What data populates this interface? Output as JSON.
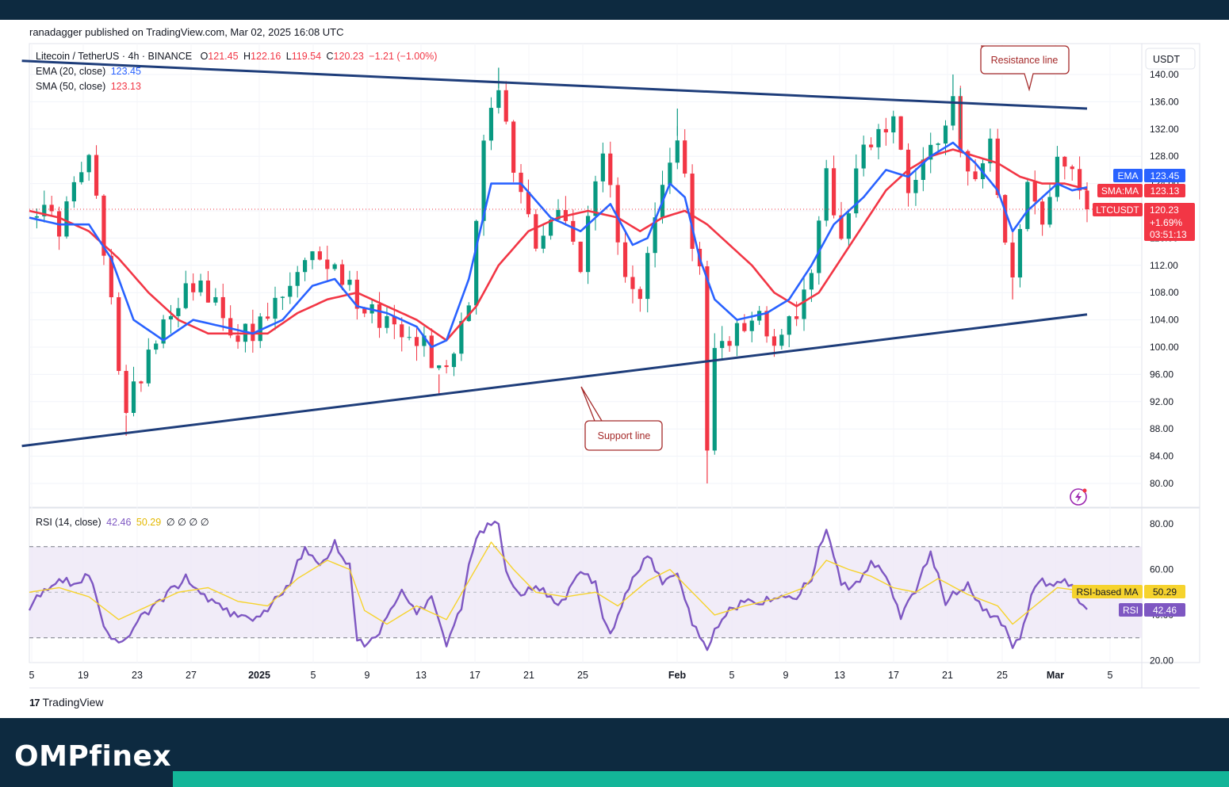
{
  "publisher": "ranadagger published on TradingView.com, Mar 02, 2025 16:08 UTC",
  "brand": {
    "tradingview": "TradingView",
    "omp": "OMPfinex"
  },
  "legend": {
    "symbol": "Litecoin / TetherUS · 4h · BINANCE",
    "o_label": "O",
    "o": "121.45",
    "h_label": "H",
    "h": "122.16",
    "l_label": "L",
    "l": "119.54",
    "c_label": "C",
    "c": "120.23",
    "change": "−1.21 (−1.00%)",
    "ema_label": "EMA (20, close)",
    "ema_value": "123.45",
    "sma_label": "SMA (50, close)",
    "sma_value": "123.13",
    "rsi_label": "RSI (14, close)",
    "rsi_value": "42.46",
    "rsi_ma_value": "50.29",
    "rsi_extra": "∅ ∅ ∅ ∅"
  },
  "currency": "USDT",
  "annotations": {
    "resistance": "Resistance line",
    "support": "Support line"
  },
  "price_tags": {
    "ema_label": "EMA",
    "ema_value": "123.45",
    "sma_label": "SMA:MA",
    "sma_value": "123.13",
    "symbol_label": "LTCUSDT",
    "last_price": "120.23",
    "last_change": "+1.69%",
    "countdown": "03:51:13",
    "rsi_ma_label": "RSI-based MA",
    "rsi_ma_value": "50.29",
    "rsi_label": "RSI",
    "rsi_value": "42.46"
  },
  "colors": {
    "ema": "#2962ff",
    "sma": "#f23645",
    "up": "#089981",
    "down": "#f23645",
    "trendline": "#1e3d7a",
    "rsi": "#7e57c2",
    "rsi_ma": "#f6d32d",
    "annotation": "#a52a2a"
  },
  "chart_data": [
    {
      "type": "candlestick",
      "title": "Litecoin / TetherUS · 4h · BINANCE",
      "y_ticks": [
        "140.00",
        "136.00",
        "132.00",
        "128.00",
        "124.00",
        "120.00",
        "116.00",
        "112.00",
        "108.00",
        "104.00",
        "100.00",
        "96.00",
        "92.00",
        "88.00",
        "84.00",
        "80.00"
      ],
      "ylim": [
        79,
        143
      ],
      "x_ticks": [
        "5",
        "19",
        "23",
        "27",
        "2025",
        "5",
        "9",
        "13",
        "17",
        "21",
        "25",
        "Feb",
        "5",
        "9",
        "13",
        "17",
        "21",
        "25",
        "Mar",
        "5"
      ],
      "price_path": [
        [
          0,
          121
        ],
        [
          4,
          118
        ],
        [
          8,
          128
        ],
        [
          11,
          106
        ],
        [
          13,
          90
        ],
        [
          16,
          100
        ],
        [
          19,
          106
        ],
        [
          22,
          110
        ],
        [
          26,
          104
        ],
        [
          30,
          101
        ],
        [
          33,
          106
        ],
        [
          36,
          110
        ],
        [
          39,
          114
        ],
        [
          42,
          110
        ],
        [
          45,
          106
        ],
        [
          48,
          104
        ],
        [
          51,
          103
        ],
        [
          53,
          101
        ],
        [
          55,
          96
        ],
        [
          57,
          100
        ],
        [
          59,
          108
        ],
        [
          61,
          130
        ],
        [
          63,
          138
        ],
        [
          65,
          126
        ],
        [
          68,
          116
        ],
        [
          71,
          120
        ],
        [
          74,
          113
        ],
        [
          77,
          127
        ],
        [
          80,
          112
        ],
        [
          82,
          108
        ],
        [
          85,
          123
        ],
        [
          87,
          131
        ],
        [
          89,
          116
        ],
        [
          90,
          110
        ],
        [
          91,
          86
        ],
        [
          92,
          98
        ],
        [
          95,
          104
        ],
        [
          98,
          105
        ],
        [
          101,
          100
        ],
        [
          103,
          106
        ],
        [
          105,
          110
        ],
        [
          107,
          126
        ],
        [
          109,
          116
        ],
        [
          112,
          130
        ],
        [
          116,
          133
        ],
        [
          118,
          124
        ],
        [
          121,
          129
        ],
        [
          124,
          137
        ],
        [
          126,
          124
        ],
        [
          129,
          131
        ],
        [
          132,
          110
        ],
        [
          134,
          124
        ],
        [
          136,
          118
        ],
        [
          138,
          126
        ],
        [
          140,
          128
        ],
        [
          142,
          120
        ]
      ],
      "low_wicks": [
        [
          13,
          87
        ],
        [
          91,
          80
        ],
        [
          55,
          93
        ],
        [
          132,
          107
        ]
      ],
      "high_wicks": [
        [
          63,
          141
        ],
        [
          87,
          135
        ],
        [
          124,
          140
        ],
        [
          125,
          138
        ]
      ],
      "ema20": [
        [
          0,
          119
        ],
        [
          4,
          118
        ],
        [
          8,
          118
        ],
        [
          11,
          113
        ],
        [
          14,
          104
        ],
        [
          18,
          101
        ],
        [
          22,
          104
        ],
        [
          26,
          103
        ],
        [
          30,
          102
        ],
        [
          34,
          104
        ],
        [
          38,
          109
        ],
        [
          41,
          110
        ],
        [
          44,
          106
        ],
        [
          48,
          105
        ],
        [
          52,
          103
        ],
        [
          54,
          100
        ],
        [
          56,
          101
        ],
        [
          59,
          110
        ],
        [
          62,
          124
        ],
        [
          66,
          124
        ],
        [
          70,
          119
        ],
        [
          74,
          117
        ],
        [
          78,
          121
        ],
        [
          81,
          115
        ],
        [
          83,
          116
        ],
        [
          86,
          124
        ],
        [
          88,
          122
        ],
        [
          90,
          113
        ],
        [
          92,
          107
        ],
        [
          95,
          104
        ],
        [
          99,
          105
        ],
        [
          102,
          107
        ],
        [
          105,
          112
        ],
        [
          108,
          118
        ],
        [
          112,
          122
        ],
        [
          115,
          126
        ],
        [
          118,
          125
        ],
        [
          121,
          128
        ],
        [
          124,
          130
        ],
        [
          127,
          127
        ],
        [
          130,
          123
        ],
        [
          132,
          117
        ],
        [
          134,
          120
        ],
        [
          136,
          122
        ],
        [
          138,
          124
        ],
        [
          140,
          123
        ],
        [
          142,
          123.45
        ]
      ],
      "sma50": [
        [
          0,
          120
        ],
        [
          4,
          119
        ],
        [
          8,
          117
        ],
        [
          12,
          113
        ],
        [
          16,
          108
        ],
        [
          20,
          104
        ],
        [
          24,
          102
        ],
        [
          28,
          102
        ],
        [
          32,
          102
        ],
        [
          36,
          105
        ],
        [
          40,
          107
        ],
        [
          44,
          108
        ],
        [
          48,
          106
        ],
        [
          52,
          104
        ],
        [
          56,
          101
        ],
        [
          60,
          106
        ],
        [
          63,
          112
        ],
        [
          67,
          117
        ],
        [
          71,
          119
        ],
        [
          75,
          120
        ],
        [
          79,
          119
        ],
        [
          82,
          117
        ],
        [
          85,
          119
        ],
        [
          88,
          120
        ],
        [
          91,
          118
        ],
        [
          94,
          115
        ],
        [
          97,
          112
        ],
        [
          100,
          108
        ],
        [
          103,
          106
        ],
        [
          106,
          108
        ],
        [
          109,
          113
        ],
        [
          112,
          118
        ],
        [
          115,
          123
        ],
        [
          118,
          126
        ],
        [
          121,
          128
        ],
        [
          124,
          129
        ],
        [
          127,
          128
        ],
        [
          130,
          127
        ],
        [
          133,
          125
        ],
        [
          136,
          124
        ],
        [
          139,
          124
        ],
        [
          142,
          123.13
        ]
      ],
      "resistance_line": [
        [
          -1,
          142
        ],
        [
          142,
          135
        ]
      ],
      "support_line": [
        [
          -1,
          85.5
        ],
        [
          142,
          104.8
        ]
      ],
      "last_price": 120.23
    },
    {
      "type": "line",
      "title": "RSI (14, close)",
      "y_ticks": [
        "80.00",
        "60.00",
        "40.00",
        "20.00"
      ],
      "ylim": [
        17,
        84
      ],
      "bands": [
        70,
        30
      ],
      "midline": 50,
      "rsi_path": [
        [
          0,
          44
        ],
        [
          4,
          55
        ],
        [
          6,
          52
        ],
        [
          8,
          60
        ],
        [
          10,
          35
        ],
        [
          11,
          30
        ],
        [
          13,
          28
        ],
        [
          15,
          40
        ],
        [
          17,
          45
        ],
        [
          19,
          52
        ],
        [
          21,
          55
        ],
        [
          24,
          48
        ],
        [
          27,
          42
        ],
        [
          30,
          38
        ],
        [
          33,
          46
        ],
        [
          35,
          55
        ],
        [
          37,
          68
        ],
        [
          39,
          62
        ],
        [
          41,
          70
        ],
        [
          43,
          60
        ],
        [
          44,
          30
        ],
        [
          46,
          27
        ],
        [
          48,
          40
        ],
        [
          50,
          50
        ],
        [
          52,
          42
        ],
        [
          54,
          48
        ],
        [
          56,
          27
        ],
        [
          58,
          45
        ],
        [
          60,
          75
        ],
        [
          62,
          82
        ],
        [
          63,
          80
        ],
        [
          64,
          58
        ],
        [
          66,
          48
        ],
        [
          68,
          52
        ],
        [
          71,
          44
        ],
        [
          74,
          60
        ],
        [
          76,
          52
        ],
        [
          78,
          30
        ],
        [
          80,
          48
        ],
        [
          83,
          68
        ],
        [
          85,
          55
        ],
        [
          87,
          58
        ],
        [
          89,
          38
        ],
        [
          91,
          25
        ],
        [
          93,
          38
        ],
        [
          96,
          48
        ],
        [
          98,
          44
        ],
        [
          101,
          48
        ],
        [
          103,
          47
        ],
        [
          105,
          56
        ],
        [
          107,
          78
        ],
        [
          109,
          55
        ],
        [
          111,
          52
        ],
        [
          113,
          62
        ],
        [
          115,
          58
        ],
        [
          117,
          40
        ],
        [
          119,
          52
        ],
        [
          121,
          66
        ],
        [
          123,
          46
        ],
        [
          126,
          52
        ],
        [
          128,
          44
        ],
        [
          130,
          38
        ],
        [
          132,
          28
        ],
        [
          133,
          30
        ],
        [
          135,
          55
        ],
        [
          137,
          52
        ],
        [
          139,
          55
        ],
        [
          141,
          46
        ],
        [
          142,
          42.46
        ]
      ],
      "rsi_ma_path": [
        [
          0,
          50
        ],
        [
          4,
          52
        ],
        [
          8,
          48
        ],
        [
          12,
          38
        ],
        [
          16,
          44
        ],
        [
          20,
          50
        ],
        [
          24,
          52
        ],
        [
          28,
          46
        ],
        [
          32,
          44
        ],
        [
          36,
          56
        ],
        [
          40,
          64
        ],
        [
          43,
          60
        ],
        [
          45,
          42
        ],
        [
          48,
          36
        ],
        [
          52,
          44
        ],
        [
          56,
          38
        ],
        [
          59,
          55
        ],
        [
          62,
          72
        ],
        [
          65,
          60
        ],
        [
          68,
          50
        ],
        [
          72,
          48
        ],
        [
          76,
          50
        ],
        [
          79,
          44
        ],
        [
          83,
          55
        ],
        [
          86,
          60
        ],
        [
          89,
          50
        ],
        [
          92,
          40
        ],
        [
          96,
          44
        ],
        [
          100,
          47
        ],
        [
          104,
          52
        ],
        [
          107,
          64
        ],
        [
          110,
          60
        ],
        [
          113,
          57
        ],
        [
          116,
          52
        ],
        [
          119,
          50
        ],
        [
          122,
          56
        ],
        [
          126,
          49
        ],
        [
          130,
          44
        ],
        [
          132,
          36
        ],
        [
          135,
          44
        ],
        [
          138,
          52
        ],
        [
          142,
          50.29
        ]
      ],
      "last_rsi": 42.46,
      "last_rsi_ma": 50.29
    }
  ]
}
